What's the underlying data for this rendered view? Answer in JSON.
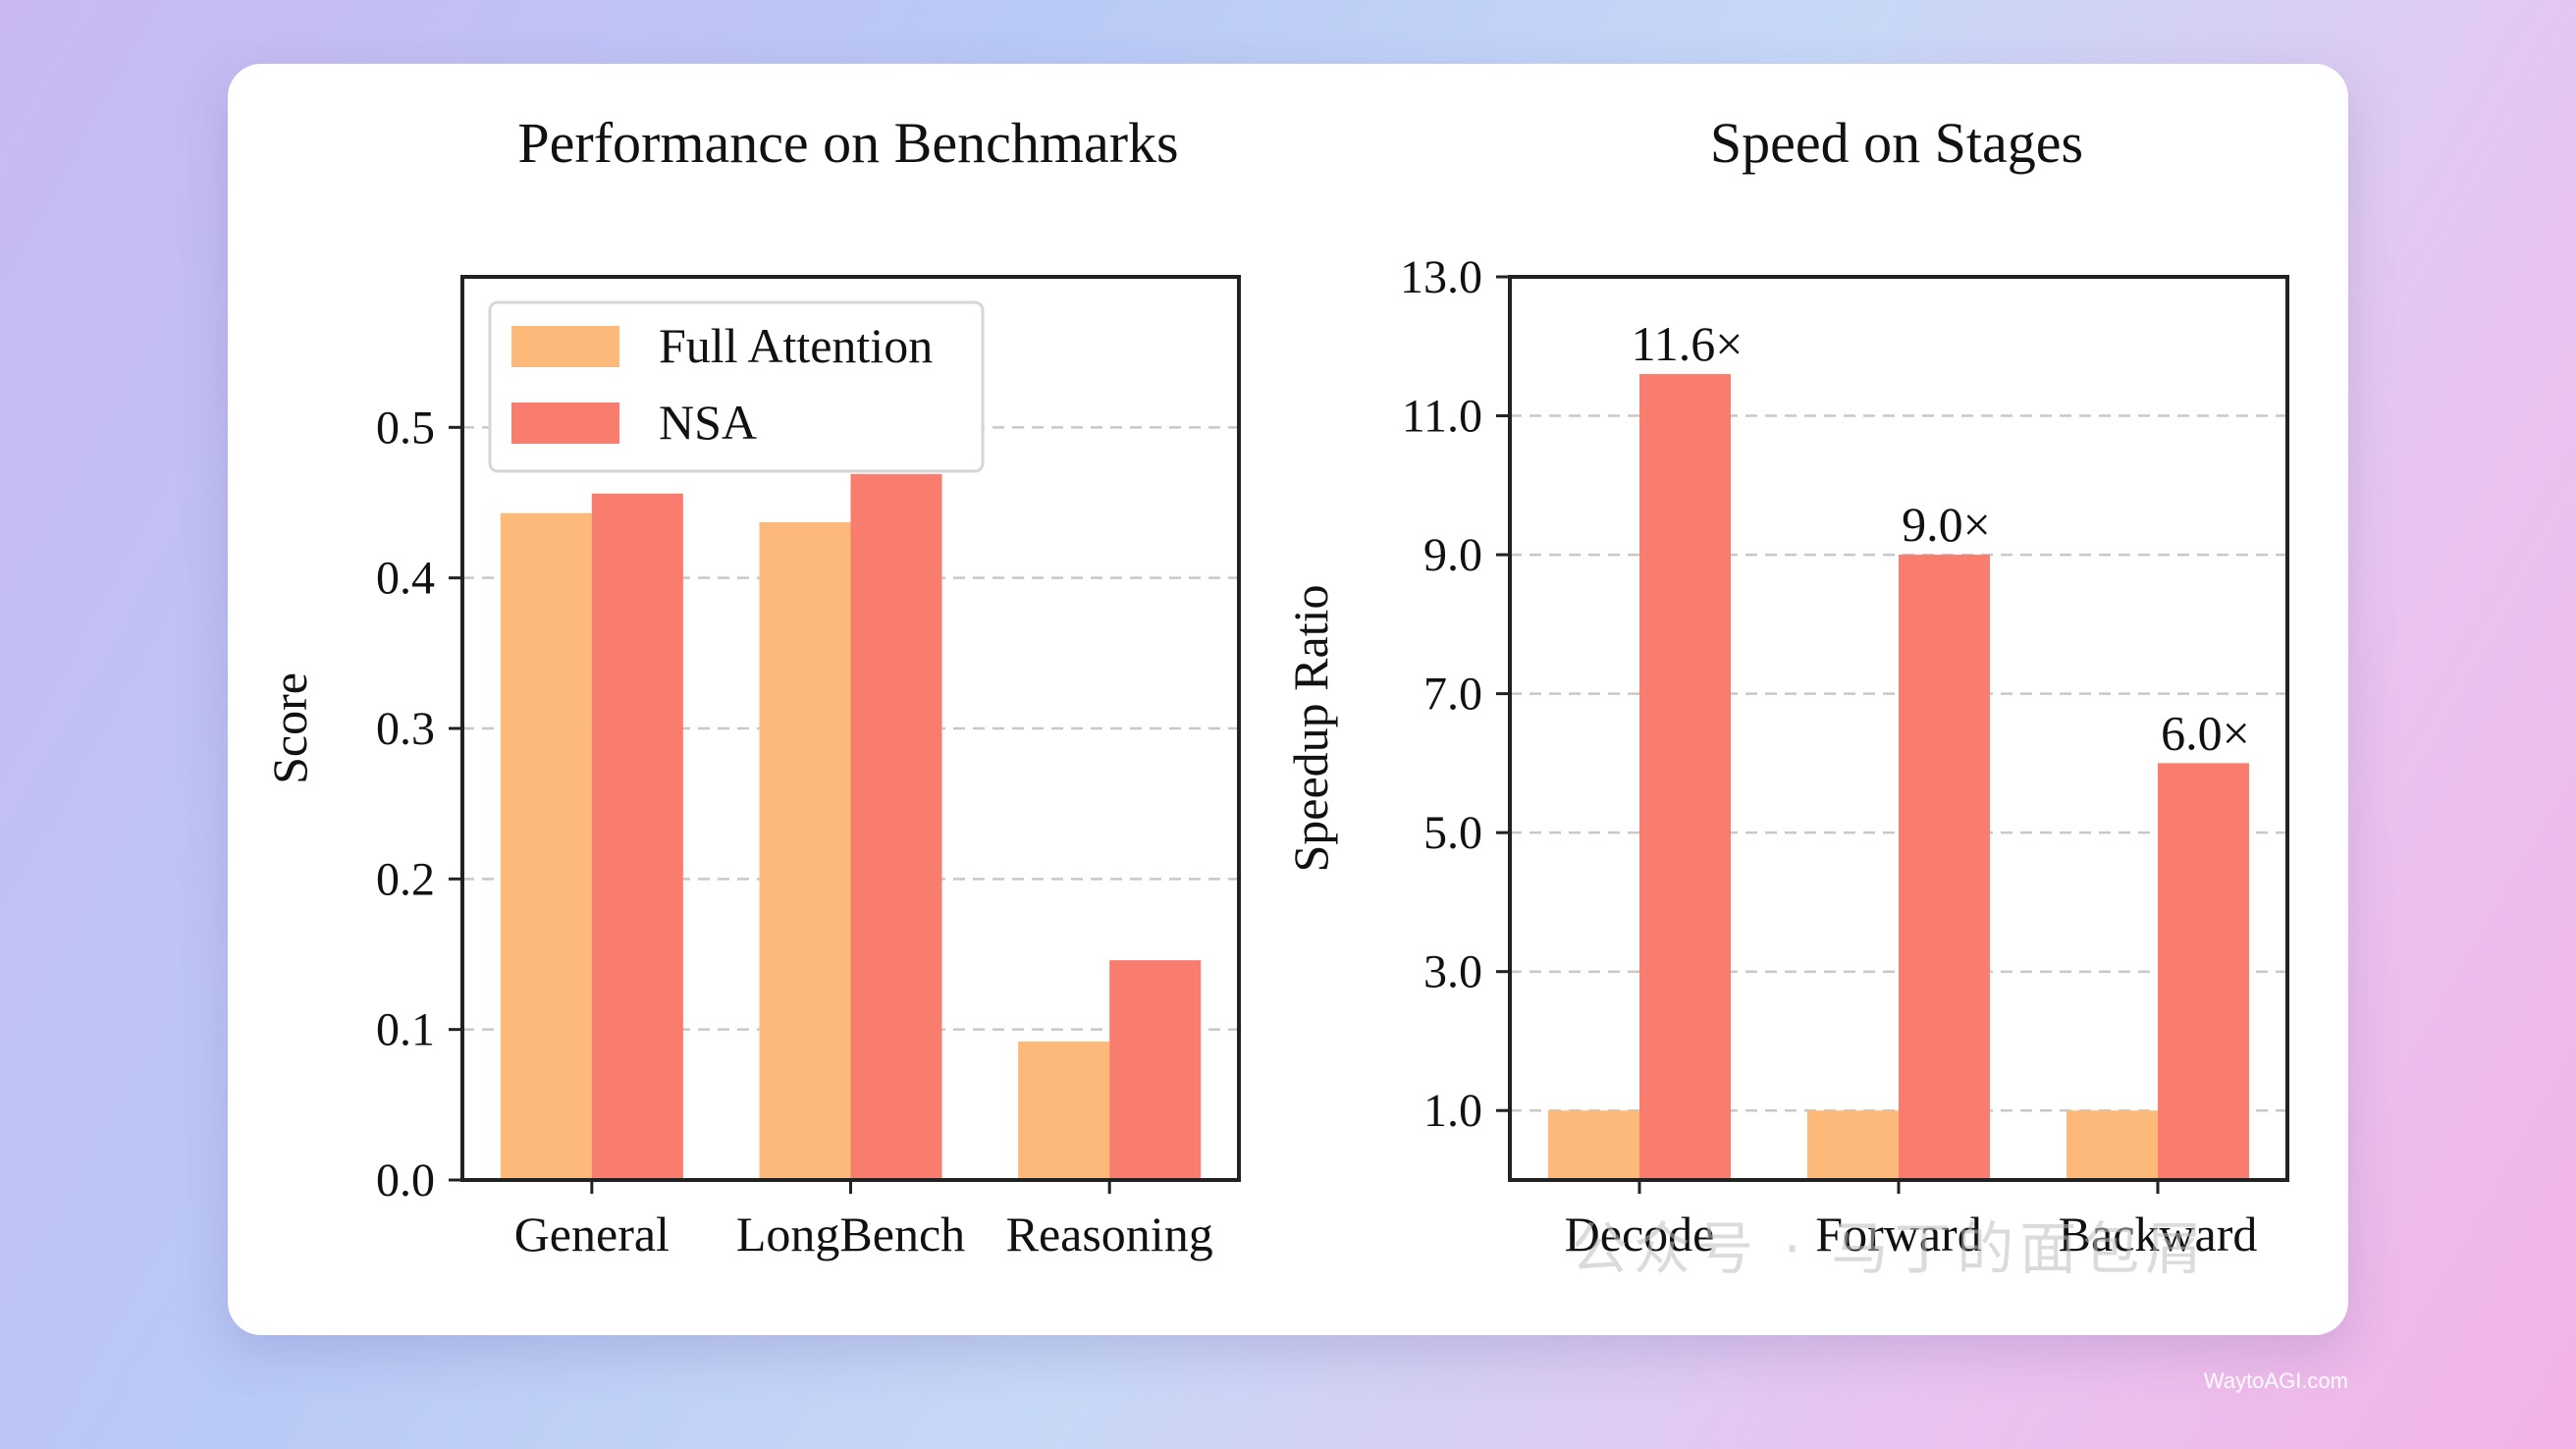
{
  "chart_data": [
    {
      "type": "bar",
      "title": "Performance on Benchmarks",
      "ylabel": "Score",
      "xlabel": "",
      "categories": [
        "General",
        "LongBench",
        "Reasoning"
      ],
      "series": [
        {
          "name": "Full Attention",
          "values": [
            0.443,
            0.437,
            0.092
          ],
          "color": "#fdb97a"
        },
        {
          "name": "NSA",
          "values": [
            0.456,
            0.469,
            0.146
          ],
          "color": "#f87d6e"
        }
      ],
      "ylim": [
        0.0,
        0.6
      ],
      "yticks": [
        0.0,
        0.1,
        0.2,
        0.3,
        0.4,
        0.5
      ],
      "ytick_labels": [
        "0.0",
        "0.1",
        "0.2",
        "0.3",
        "0.4",
        "0.5"
      ],
      "grid": "horizontal dashed",
      "legend": "top-left"
    },
    {
      "type": "bar",
      "title": "Speed on Stages",
      "ylabel": "Speedup Ratio",
      "xlabel": "",
      "categories": [
        "Decode",
        "Forward",
        "Backward"
      ],
      "series": [
        {
          "values": [
            1.0,
            1.0,
            1.0
          ],
          "color": "#fdb97a"
        },
        {
          "values": [
            11.6,
            9.0,
            6.0
          ],
          "color": "#f87d6e"
        }
      ],
      "data_labels": [
        "11.6×",
        "9.0×",
        "6.0×"
      ],
      "ylim": [
        0.0,
        13.0
      ],
      "yticks": [
        1.0,
        3.0,
        5.0,
        7.0,
        9.0,
        11.0,
        13.0
      ],
      "ytick_labels": [
        "1.0",
        "3.0",
        "5.0",
        "7.0",
        "9.0",
        "11.0",
        "13.0"
      ],
      "grid": "horizontal dashed",
      "legend": "none"
    }
  ],
  "watermarks": {
    "overlay": "公众号 · 马丁的面包屑",
    "footer": "WaytoAGI.com"
  },
  "colors": {
    "full_attention": "#fdb97a",
    "nsa": "#f87d6e",
    "grid": "#c8c8c8",
    "axis": "#222222"
  }
}
